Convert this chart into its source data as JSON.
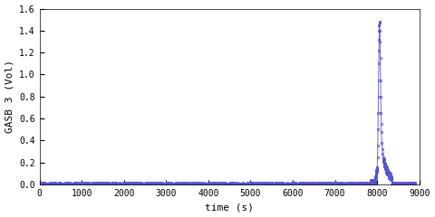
{
  "ylabel": "GASB 3 (Vol)",
  "xlabel": "time (s)",
  "xlim": [
    0,
    9000
  ],
  "ylim": [
    0,
    1.6
  ],
  "xticks": [
    0,
    1000,
    2000,
    3000,
    4000,
    5000,
    6000,
    7000,
    8000,
    9000
  ],
  "yticks": [
    0,
    0.2,
    0.4,
    0.6,
    0.8,
    1.0,
    1.2,
    1.4,
    1.6
  ],
  "line_color": "#5555cc",
  "marker": "s",
  "marker_size": 2.0,
  "bg_color": "#ffffff",
  "font_family": "monospace",
  "figsize": [
    4.8,
    2.4
  ],
  "dpi": 100
}
